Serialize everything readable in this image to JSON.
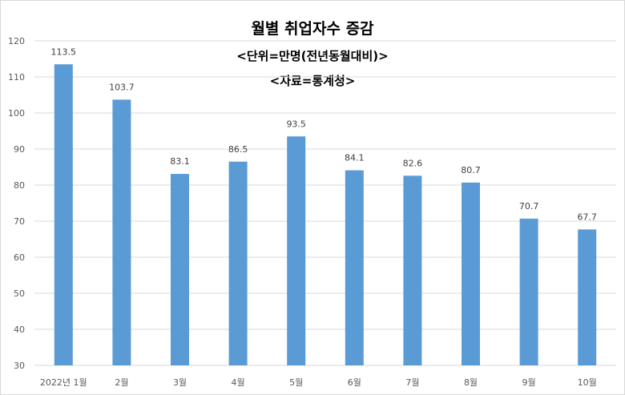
{
  "chart_data": {
    "type": "bar",
    "title": "월별 취업자수 증감",
    "subtitle": "<단위=만명(전년동월대비)>",
    "source": "<자료=통계청>",
    "categories": [
      "2022년 1월",
      "2월",
      "3월",
      "4월",
      "5월",
      "6월",
      "7월",
      "8월",
      "9월",
      "10월"
    ],
    "values": [
      113.5,
      103.7,
      83.1,
      86.5,
      93.5,
      84.1,
      82.6,
      80.7,
      70.7,
      67.7
    ],
    "data_labels": [
      "113.5",
      "103.7",
      "83.1",
      "86.5",
      "93.5",
      "84.1",
      "82.6",
      "80.7",
      "70.7",
      "67.7"
    ],
    "ylim": [
      30,
      120
    ],
    "yticks": [
      30,
      40,
      50,
      60,
      70,
      80,
      90,
      100,
      110,
      120
    ],
    "grid": true,
    "legend": "none",
    "colors": {
      "bar": "#5b9bd5",
      "grid": "#d9d9d9",
      "axis_text": "#595959"
    }
  }
}
